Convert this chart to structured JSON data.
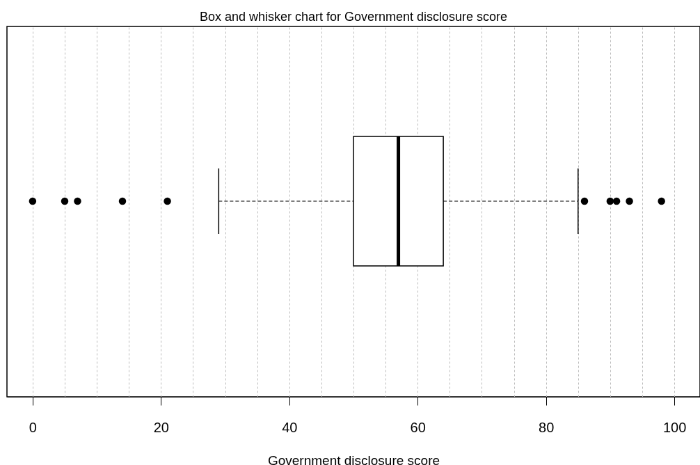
{
  "chart_data": {
    "type": "box",
    "title": "Box and whisker chart for Government disclosure score",
    "xlabel": "Government disclosure score",
    "orientation": "horizontal",
    "categories": [
      null
    ],
    "boxes": [
      {
        "low": 29,
        "q1": 50,
        "median": 57,
        "q3": 64,
        "high": 85,
        "outliers": [
          0,
          5,
          7,
          14,
          21,
          86,
          90,
          91,
          93,
          98
        ]
      }
    ],
    "xlim": [
      -4,
      104
    ],
    "xticks": [
      0,
      {
        "value": 5,
        "label": null
      },
      {
        "value": 10,
        "label": null
      },
      {
        "value": 15,
        "label": null
      },
      20,
      {
        "value": 25,
        "label": null
      },
      {
        "value": 30,
        "label": null
      },
      {
        "value": 35,
        "label": null
      },
      40,
      {
        "value": 45,
        "label": null
      },
      {
        "value": 50,
        "label": null
      },
      {
        "value": 55,
        "label": null
      },
      60,
      {
        "value": 65,
        "label": null
      },
      {
        "value": 70,
        "label": null
      },
      {
        "value": 75,
        "label": null
      },
      80,
      {
        "value": 85,
        "label": null
      },
      {
        "value": 90,
        "label": null
      },
      {
        "value": 95,
        "label": null
      },
      100
    ],
    "grid": "x",
    "marker": "circle",
    "line_style": "dashed"
  }
}
